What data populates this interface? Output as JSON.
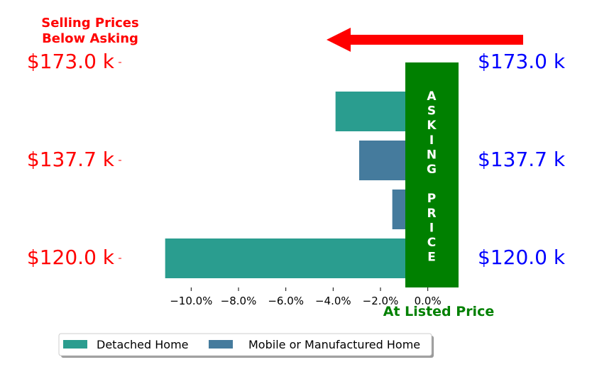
{
  "chart_data": {
    "type": "bar",
    "orientation": "horizontal",
    "categories": [
      "$120.0 k",
      "",
      "",
      "$137.7 k",
      "$173.0 k"
    ],
    "series": [
      {
        "name": "Detached Home",
        "color": "#2a9d8f",
        "values": [
          -11.1,
          null,
          null,
          -3.9,
          null
        ]
      },
      {
        "name": "Mobile or Manufactured Home",
        "color": "#457b9d",
        "values": [
          null,
          -1.5,
          -2.9,
          null,
          null
        ]
      }
    ],
    "left_tick_labels": [
      "$173.0 k",
      "$137.7 k",
      "$120.0 k"
    ],
    "right_tick_labels": [
      "$173.0 k",
      "$137.7 k",
      "$120.0 k"
    ],
    "x_ticks": [
      -10,
      -8,
      -6,
      -4,
      -2,
      0
    ],
    "x_tick_labels": [
      "−10.0%",
      "−8.0%",
      "−6.0%",
      "−4.0%",
      "−2.0%",
      "0.0%"
    ],
    "xlim": [
      -12.2,
      1.3
    ],
    "annotations": {
      "top_left": [
        "Selling Prices",
        "Below Asking"
      ],
      "asking_band": [
        "A",
        "S",
        "K",
        "I",
        "N",
        "G",
        "",
        "P",
        "R",
        "I",
        "C",
        "E"
      ],
      "bottom": "At Listed Price"
    },
    "grid": false,
    "legend": {
      "position": "bottom-left",
      "columns": 2
    },
    "colors": {
      "left_labels": "#ff0000",
      "right_labels": "#0000ff",
      "arrow": "#ff0000",
      "asking_band": "#008000",
      "title_text": "#ff0000",
      "bottom_text": "#008000"
    }
  }
}
